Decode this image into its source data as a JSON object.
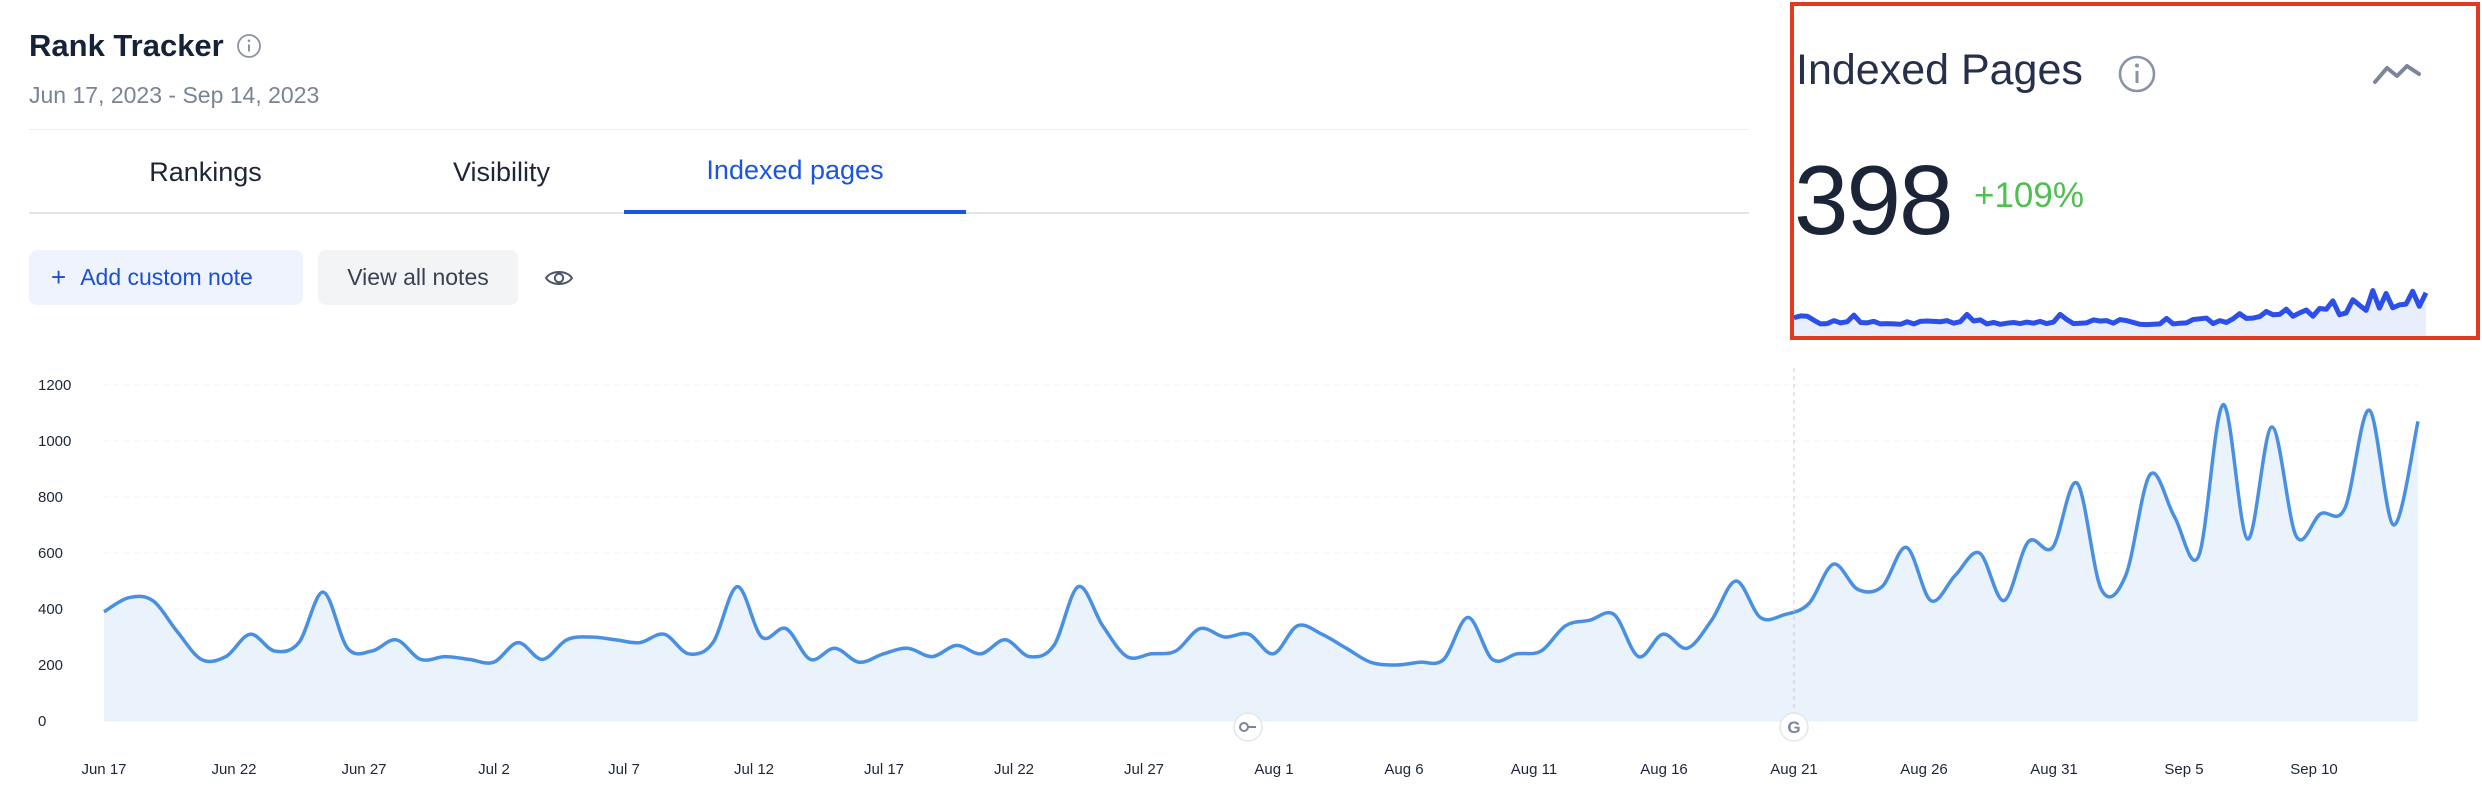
{
  "header": {
    "title": "Rank Tracker",
    "date_range": "Jun 17, 2023 - Sep 14, 2023"
  },
  "tabs": [
    {
      "label": "Rankings",
      "active": false
    },
    {
      "label": "Visibility",
      "active": false
    },
    {
      "label": "Indexed pages",
      "active": true
    }
  ],
  "toolbar": {
    "add_note_label": "Add custom note",
    "view_notes_label": "View all notes"
  },
  "card": {
    "title": "Indexed Pages",
    "value": "398",
    "change": "+109%",
    "change_color": "#4fbf52"
  },
  "colors": {
    "accent": "#1a56db",
    "line": "#4a90e2",
    "area": "#eaf2fc",
    "card_border": "#e03a22",
    "spark": "#2b4fe8"
  },
  "icons": [
    "info-icon",
    "plus-icon",
    "eye-icon",
    "trend-icon",
    "key-icon",
    "google-icon"
  ],
  "chart_data": {
    "type": "area",
    "x_ticks": [
      "Jun 17",
      "Jun 22",
      "Jun 27",
      "Jul 2",
      "Jul 7",
      "Jul 12",
      "Jul 17",
      "Jul 22",
      "Jul 27",
      "Aug 1",
      "Aug 6",
      "Aug 11",
      "Aug 16",
      "Aug 21",
      "Aug 26",
      "Aug 31",
      "Sep 5",
      "Sep 10"
    ],
    "y_ticks": [
      0,
      200,
      400,
      600,
      800,
      1000,
      1200
    ],
    "ylim": [
      0,
      1200
    ],
    "grid": true,
    "x_start": "Jun 17",
    "x_end": "Sep 14",
    "series": [
      {
        "values": [
          390,
          440,
          430,
          320,
          220,
          230,
          310,
          250,
          280,
          460,
          260,
          250,
          290,
          220,
          230,
          220,
          210,
          280,
          220,
          290,
          300,
          290,
          280,
          310,
          240,
          280,
          480,
          300,
          330,
          220,
          260,
          210,
          240,
          260,
          230,
          270,
          240,
          290,
          230,
          270,
          480,
          340,
          230,
          240,
          250,
          330,
          300,
          310,
          240,
          340,
          310,
          260,
          210,
          200,
          210,
          220,
          370,
          220,
          240,
          250,
          340,
          360,
          380,
          230,
          310,
          260,
          360,
          500,
          370,
          380,
          420,
          560,
          470,
          480,
          620,
          430,
          520,
          600,
          430,
          640,
          620,
          850,
          470,
          520,
          880,
          730,
          590,
          1130,
          650,
          1050,
          660,
          740,
          760,
          1110,
          700,
          1070
        ]
      }
    ],
    "annotations": [
      "key-icon at Jul 31",
      "google-icon at Aug 21"
    ]
  }
}
